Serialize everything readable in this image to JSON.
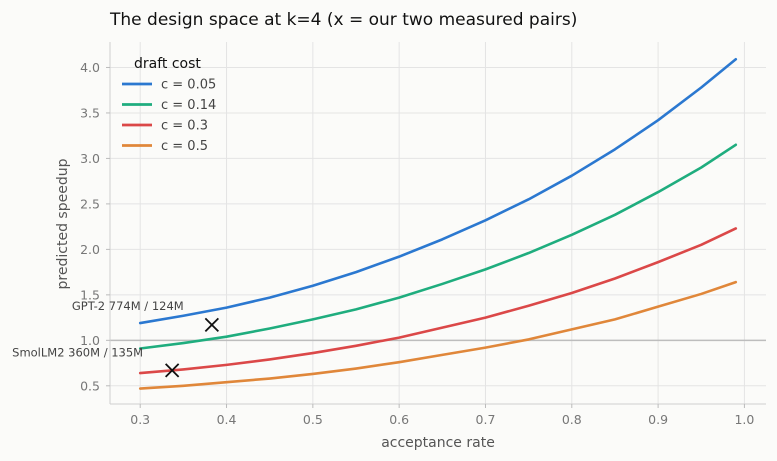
{
  "chart_data": {
    "type": "line",
    "title": "The design space at k=4 (x = our two measured pairs)",
    "xlabel": "acceptance rate",
    "ylabel": "predicted speedup",
    "xlim": [
      0.265,
      1.025
    ],
    "ylim": [
      0.3,
      4.28
    ],
    "xticks": [
      0.3,
      0.4,
      0.5,
      0.6,
      0.7,
      0.8,
      0.9,
      1.0
    ],
    "xtick_labels": [
      "0.3",
      "0.4",
      "0.5",
      "0.6",
      "0.7",
      "0.8",
      "0.9",
      "1.0"
    ],
    "yticks": [
      0.5,
      1.0,
      1.5,
      2.0,
      2.5,
      3.0,
      3.5,
      4.0
    ],
    "ytick_labels": [
      "0.5",
      "1.0",
      "1.5",
      "2.0",
      "2.5",
      "3.0",
      "3.5",
      "4.0"
    ],
    "grid": true,
    "reference_line_y": 1.0,
    "legend": {
      "title": "draft cost",
      "position": "top-left"
    },
    "x": [
      0.3,
      0.35,
      0.4,
      0.45,
      0.5,
      0.55,
      0.6,
      0.65,
      0.7,
      0.75,
      0.8,
      0.85,
      0.9,
      0.95,
      0.99
    ],
    "series": [
      {
        "name": "c = 0.05",
        "color": "#2b78d0",
        "values": [
          1.19,
          1.27,
          1.36,
          1.47,
          1.6,
          1.75,
          1.92,
          2.11,
          2.32,
          2.55,
          2.81,
          3.1,
          3.42,
          3.78,
          4.09
        ]
      },
      {
        "name": "c = 0.14",
        "color": "#1fad7e",
        "values": [
          0.91,
          0.97,
          1.04,
          1.13,
          1.23,
          1.34,
          1.47,
          1.62,
          1.78,
          1.96,
          2.16,
          2.38,
          2.63,
          2.9,
          3.15
        ]
      },
      {
        "name": "c = 0.3",
        "color": "#db4848",
        "values": [
          0.64,
          0.68,
          0.73,
          0.79,
          0.86,
          0.94,
          1.03,
          1.14,
          1.25,
          1.38,
          1.52,
          1.68,
          1.86,
          2.05,
          2.23
        ]
      },
      {
        "name": "c = 0.5",
        "color": "#e0873a",
        "values": [
          0.47,
          0.5,
          0.54,
          0.58,
          0.63,
          0.69,
          0.76,
          0.84,
          0.92,
          1.01,
          1.12,
          1.23,
          1.37,
          1.51,
          1.64
        ]
      }
    ],
    "markers": [
      {
        "label": "GPT-2 774M / 124M",
        "x": 0.383,
        "y": 1.17
      },
      {
        "label": "SmolLM2 360M / 135M",
        "x": 0.337,
        "y": 0.67
      }
    ]
  }
}
